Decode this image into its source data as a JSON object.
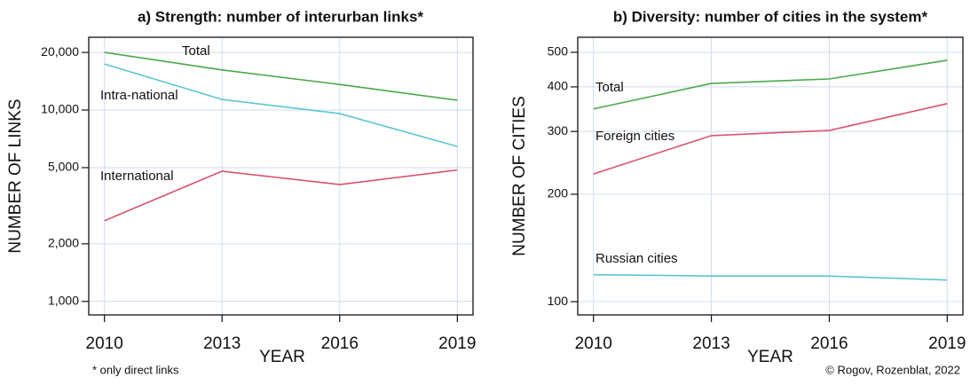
{
  "chart_data": [
    {
      "type": "line",
      "title": "a) Strength: number of interurban links*",
      "xlabel": "YEAR",
      "ylabel": "NUMBER OF LINKS",
      "x": [
        2010,
        2013,
        2016,
        2019
      ],
      "xlim": [
        2009.6,
        2019.4
      ],
      "xticks": [
        2010,
        2013,
        2016,
        2019
      ],
      "ylim": [
        850,
        24000
      ],
      "log_y": true,
      "grid": true,
      "yticks": [
        {
          "value": 1000,
          "label": "1,000"
        },
        {
          "value": 2000,
          "label": "2,000"
        },
        {
          "value": 5000,
          "label": "5,000"
        },
        {
          "value": 10000,
          "label": "10,000"
        },
        {
          "value": 20000,
          "label": "20,000"
        }
      ],
      "series": [
        {
          "name": "Total",
          "color": "#4aa84a",
          "values": [
            20000,
            16200,
            13600,
            11250
          ]
        },
        {
          "name": "Intra-national",
          "color": "#5bc5d0",
          "values": [
            17400,
            11360,
            9580,
            6450
          ]
        },
        {
          "name": "International",
          "color": "#d9546f",
          "values": [
            2640,
            4790,
            4080,
            4860
          ]
        }
      ]
    },
    {
      "type": "line",
      "title": "b) Diversity: number of cities in the system*",
      "xlabel": "YEAR",
      "ylabel": "NUMBER OF CITIES",
      "x": [
        2010,
        2013,
        2016,
        2019
      ],
      "xlim": [
        2009.6,
        2019.4
      ],
      "xticks": [
        2010,
        2013,
        2016,
        2019
      ],
      "ylim": [
        91.8,
        551
      ],
      "log_y": true,
      "grid": true,
      "yticks": [
        100,
        200,
        300,
        400,
        500
      ],
      "series": [
        {
          "name": "Total",
          "color": "#4aa84a",
          "values": [
            347,
            409,
            421,
            475
          ]
        },
        {
          "name": "Foreign cities",
          "color": "#d9546f",
          "values": [
            228,
            292,
            302,
            359
          ]
        },
        {
          "name": "Russian cities",
          "color": "#5bc5d0",
          "values": [
            119,
            118,
            118,
            115
          ]
        }
      ]
    }
  ],
  "footnote": "* only direct links",
  "credit": "© Rogov, Rozenblat, 2022"
}
